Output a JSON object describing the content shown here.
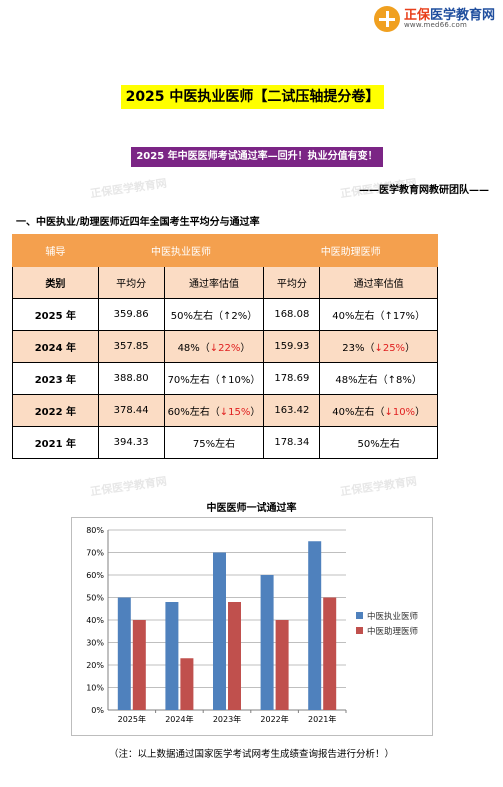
{
  "header": {
    "logo_brand": "正保",
    "logo_name": "医学教育网",
    "logo_url": "www.med66.com"
  },
  "watermark_text": "正保医学教育网",
  "title": "2025 中医执业医师【二试压轴提分卷】",
  "subtitle": "2025 年中医医师考试通过率—回升！执业分值有变！",
  "team": "——医学教育网教研团队——",
  "section_heading": "一、中医执业/助理医师近四年全国考生平均分与通过率",
  "table": {
    "header_row1": {
      "col0": "辅导",
      "group1": "中医执业医师",
      "group2": "中医助理医师"
    },
    "header_row2": {
      "col0": "类别",
      "avg1": "平均分",
      "rate1": "通过率估值",
      "avg2": "平均分",
      "rate2": "通过率估值"
    },
    "rows": [
      {
        "year": "2025 年",
        "avg1": "359.86",
        "rate1_text": "50%左右（",
        "rate1_change": "↑2%",
        "rate1_close": "）",
        "rate1_down": false,
        "avg2": "168.08",
        "rate2_text": "40%左右（",
        "rate2_change": "↑17%",
        "rate2_close": "）",
        "rate2_down": false
      },
      {
        "year": "2024 年",
        "avg1": "357.85",
        "rate1_text": "48%（",
        "rate1_change": "↓22%",
        "rate1_close": "）",
        "rate1_down": true,
        "avg2": "159.93",
        "rate2_text": "23%（",
        "rate2_change": "↓25%",
        "rate2_close": "）",
        "rate2_down": true
      },
      {
        "year": "2023 年",
        "avg1": "388.80",
        "rate1_text": "70%左右（",
        "rate1_change": "↑10%",
        "rate1_close": "）",
        "rate1_down": false,
        "avg2": "178.69",
        "rate2_text": "48%左右（",
        "rate2_change": "↑8%",
        "rate2_close": "）",
        "rate2_down": false
      },
      {
        "year": "2022 年",
        "avg1": "378.44",
        "rate1_text": "60%左右（",
        "rate1_change": "↓15%",
        "rate1_close": "）",
        "rate1_down": true,
        "avg2": "163.42",
        "rate2_text": "40%左右（",
        "rate2_change": "↓10%",
        "rate2_close": "）",
        "rate2_down": true
      },
      {
        "year": "2021 年",
        "avg1": "394.33",
        "rate1_text": "75%左右",
        "rate1_change": "",
        "rate1_close": "",
        "rate1_down": false,
        "avg2": "178.34",
        "rate2_text": "50%左右",
        "rate2_change": "",
        "rate2_close": "",
        "rate2_down": false
      }
    ]
  },
  "chart_title": "中医医师一试通过率",
  "chart_data": {
    "type": "bar",
    "title": "中医医师一试通过率",
    "categories": [
      "2025年",
      "2024年",
      "2023年",
      "2022年",
      "2021年"
    ],
    "series": [
      {
        "name": "中医执业医师",
        "values": [
          50,
          48,
          70,
          60,
          75
        ],
        "color": "#4f81bd"
      },
      {
        "name": "中医助理医师",
        "values": [
          40,
          23,
          48,
          40,
          50
        ],
        "color": "#c0504d"
      }
    ],
    "ylim": [
      0,
      80
    ],
    "yticks": [
      "0%",
      "10%",
      "20%",
      "30%",
      "40%",
      "50%",
      "60%",
      "70%",
      "80%"
    ],
    "grid": true,
    "legend": "right"
  },
  "note": "（注：以上数据通过国家医学考试网考生成绩查询报告进行分析！）",
  "colors": {
    "title_bg": "#ffff00",
    "subtitle_bg": "#7b2585",
    "table_header": "#f4a04e",
    "table_band": "#fbdcc4",
    "down": "#e02020"
  }
}
